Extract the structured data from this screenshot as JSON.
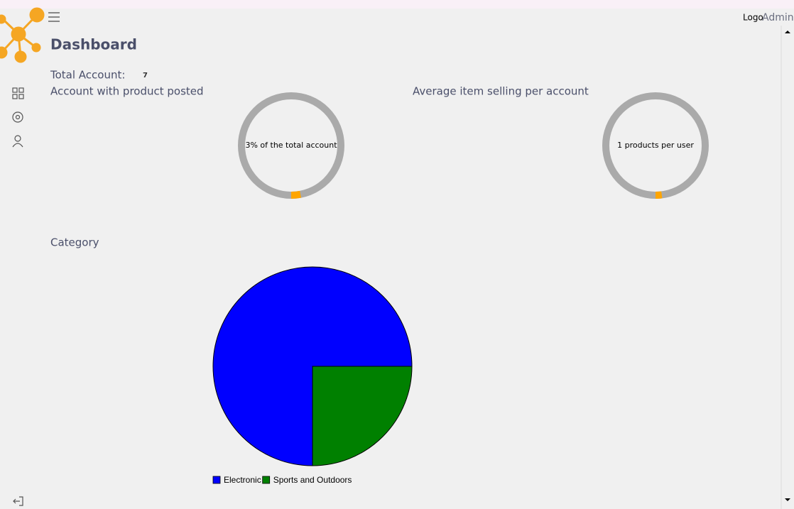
{
  "header": {
    "logo": "Logo",
    "user": "Admin"
  },
  "page_title": "Dashboard",
  "total_account": {
    "label": "Total Account:",
    "value": 7
  },
  "gauges": [
    {
      "title": "Account with product posted",
      "label": "3% of the total account",
      "percent": 3
    },
    {
      "title": "Average item selling per account",
      "label": "1 products per user",
      "percent": 2
    }
  ],
  "category": {
    "title": "Category",
    "type": "pie",
    "categories": [
      "Electronic",
      "Sports and Outdoors"
    ],
    "values": [
      75,
      25
    ],
    "colors": [
      "#0000ff",
      "#008000"
    ]
  }
}
